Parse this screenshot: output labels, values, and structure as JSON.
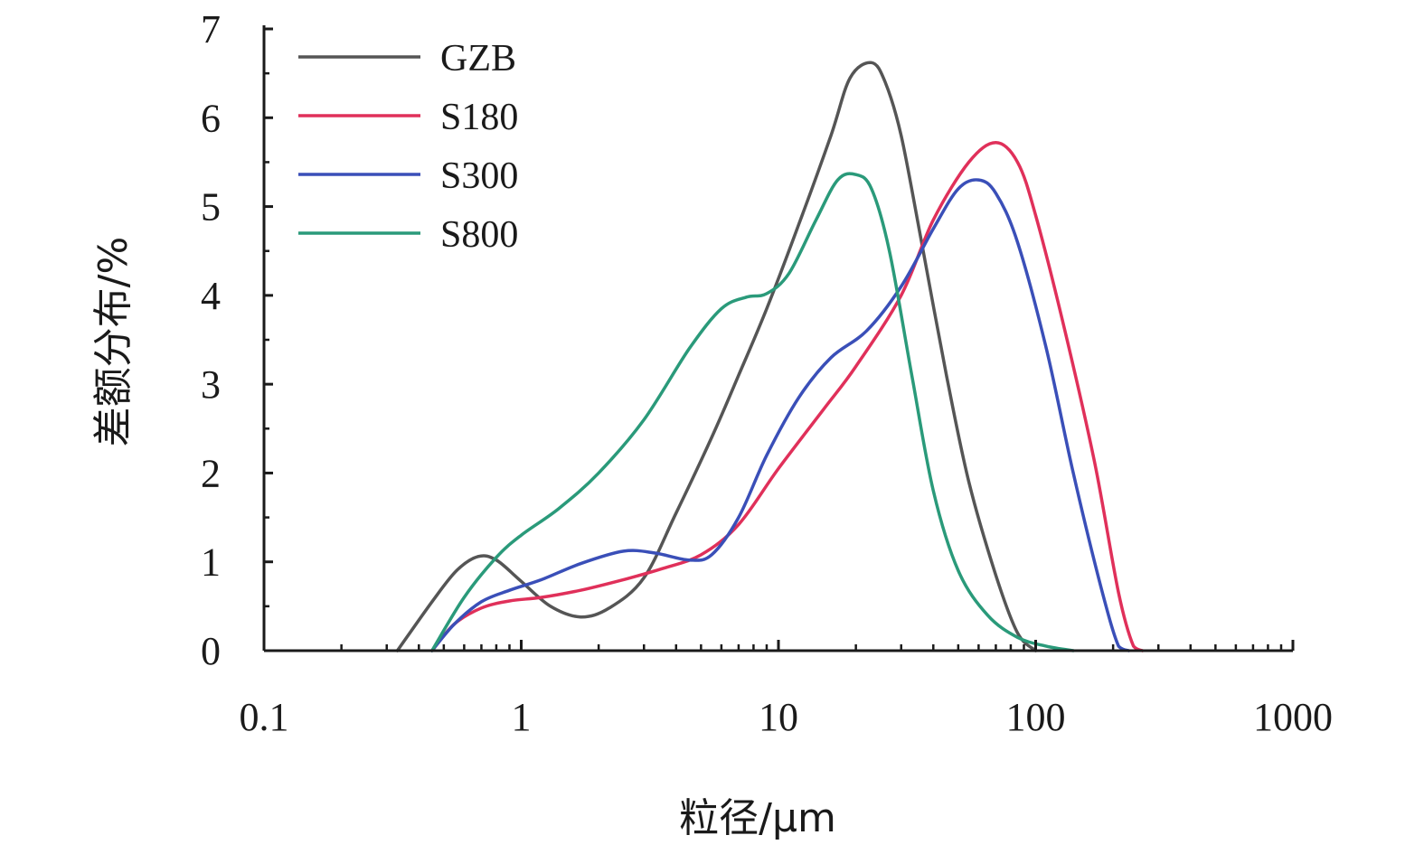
{
  "chart_data": {
    "type": "line",
    "title": "",
    "xlabel": "粒径/μm",
    "ylabel": "差额分布/%",
    "xscale": "log",
    "xlim": [
      0.1,
      1000
    ],
    "ylim": [
      0,
      7
    ],
    "x_ticks": [
      0.1,
      1,
      10,
      100,
      1000
    ],
    "x_tick_labels": [
      "0.1",
      "1",
      "10",
      "100",
      "1000"
    ],
    "y_ticks": [
      0,
      1,
      2,
      3,
      4,
      5,
      6,
      7
    ],
    "y_tick_labels": [
      "0",
      "1",
      "2",
      "3",
      "4",
      "5",
      "6",
      "7"
    ],
    "grid": false,
    "legend_position": "top-left",
    "series": [
      {
        "name": "GZB",
        "color": "#555555",
        "points": [
          [
            0.33,
            0
          ],
          [
            0.45,
            0.55
          ],
          [
            0.56,
            0.9
          ],
          [
            0.68,
            1.06
          ],
          [
            0.8,
            1.02
          ],
          [
            1.0,
            0.78
          ],
          [
            1.3,
            0.5
          ],
          [
            1.7,
            0.38
          ],
          [
            2.2,
            0.48
          ],
          [
            3.0,
            0.82
          ],
          [
            4.0,
            1.55
          ],
          [
            5.5,
            2.4
          ],
          [
            7.0,
            3.1
          ],
          [
            9.0,
            3.85
          ],
          [
            12.0,
            4.8
          ],
          [
            16.0,
            5.8
          ],
          [
            19.0,
            6.45
          ],
          [
            23.0,
            6.62
          ],
          [
            26.0,
            6.4
          ],
          [
            30.0,
            5.8
          ],
          [
            36.0,
            4.6
          ],
          [
            45.0,
            3.1
          ],
          [
            55.0,
            1.9
          ],
          [
            70.0,
            0.85
          ],
          [
            85.0,
            0.2
          ],
          [
            100.0,
            0
          ]
        ]
      },
      {
        "name": "S180",
        "color": "#e0305a",
        "points": [
          [
            0.45,
            0
          ],
          [
            0.55,
            0.3
          ],
          [
            0.7,
            0.48
          ],
          [
            0.9,
            0.56
          ],
          [
            1.2,
            0.6
          ],
          [
            1.7,
            0.68
          ],
          [
            2.5,
            0.8
          ],
          [
            3.5,
            0.92
          ],
          [
            5.0,
            1.08
          ],
          [
            7.0,
            1.42
          ],
          [
            10.0,
            2.05
          ],
          [
            15.0,
            2.72
          ],
          [
            20.0,
            3.2
          ],
          [
            30.0,
            4.0
          ],
          [
            40.0,
            4.85
          ],
          [
            55.0,
            5.5
          ],
          [
            70.0,
            5.72
          ],
          [
            85.0,
            5.5
          ],
          [
            100.0,
            4.9
          ],
          [
            130.0,
            3.6
          ],
          [
            170.0,
            2.1
          ],
          [
            210.0,
            0.65
          ],
          [
            240.0,
            0.05
          ],
          [
            260.0,
            0
          ]
        ]
      },
      {
        "name": "S300",
        "color": "#3a4fb8",
        "points": [
          [
            0.45,
            0
          ],
          [
            0.55,
            0.3
          ],
          [
            0.7,
            0.55
          ],
          [
            0.9,
            0.68
          ],
          [
            1.2,
            0.8
          ],
          [
            1.7,
            0.98
          ],
          [
            2.5,
            1.12
          ],
          [
            3.3,
            1.1
          ],
          [
            4.5,
            1.02
          ],
          [
            5.5,
            1.08
          ],
          [
            7.0,
            1.5
          ],
          [
            9.0,
            2.2
          ],
          [
            12.0,
            2.85
          ],
          [
            16.0,
            3.3
          ],
          [
            22.0,
            3.6
          ],
          [
            30.0,
            4.1
          ],
          [
            40.0,
            4.75
          ],
          [
            50.0,
            5.2
          ],
          [
            60.0,
            5.3
          ],
          [
            70.0,
            5.15
          ],
          [
            85.0,
            4.6
          ],
          [
            110.0,
            3.4
          ],
          [
            140.0,
            2.0
          ],
          [
            180.0,
            0.7
          ],
          [
            210.0,
            0.05
          ],
          [
            230.0,
            0
          ]
        ]
      },
      {
        "name": "S800",
        "color": "#2a9a7a",
        "points": [
          [
            0.45,
            0
          ],
          [
            0.6,
            0.6
          ],
          [
            0.8,
            1.05
          ],
          [
            1.0,
            1.3
          ],
          [
            1.4,
            1.6
          ],
          [
            2.0,
            2.0
          ],
          [
            3.0,
            2.6
          ],
          [
            4.5,
            3.4
          ],
          [
            6.0,
            3.85
          ],
          [
            7.5,
            3.98
          ],
          [
            9.0,
            4.02
          ],
          [
            11.0,
            4.25
          ],
          [
            14.0,
            4.85
          ],
          [
            17.0,
            5.3
          ],
          [
            20.0,
            5.36
          ],
          [
            23.0,
            5.2
          ],
          [
            27.0,
            4.5
          ],
          [
            33.0,
            3.1
          ],
          [
            40.0,
            1.8
          ],
          [
            50.0,
            0.9
          ],
          [
            65.0,
            0.4
          ],
          [
            85.0,
            0.15
          ],
          [
            110.0,
            0.05
          ],
          [
            140.0,
            0
          ]
        ]
      }
    ]
  }
}
